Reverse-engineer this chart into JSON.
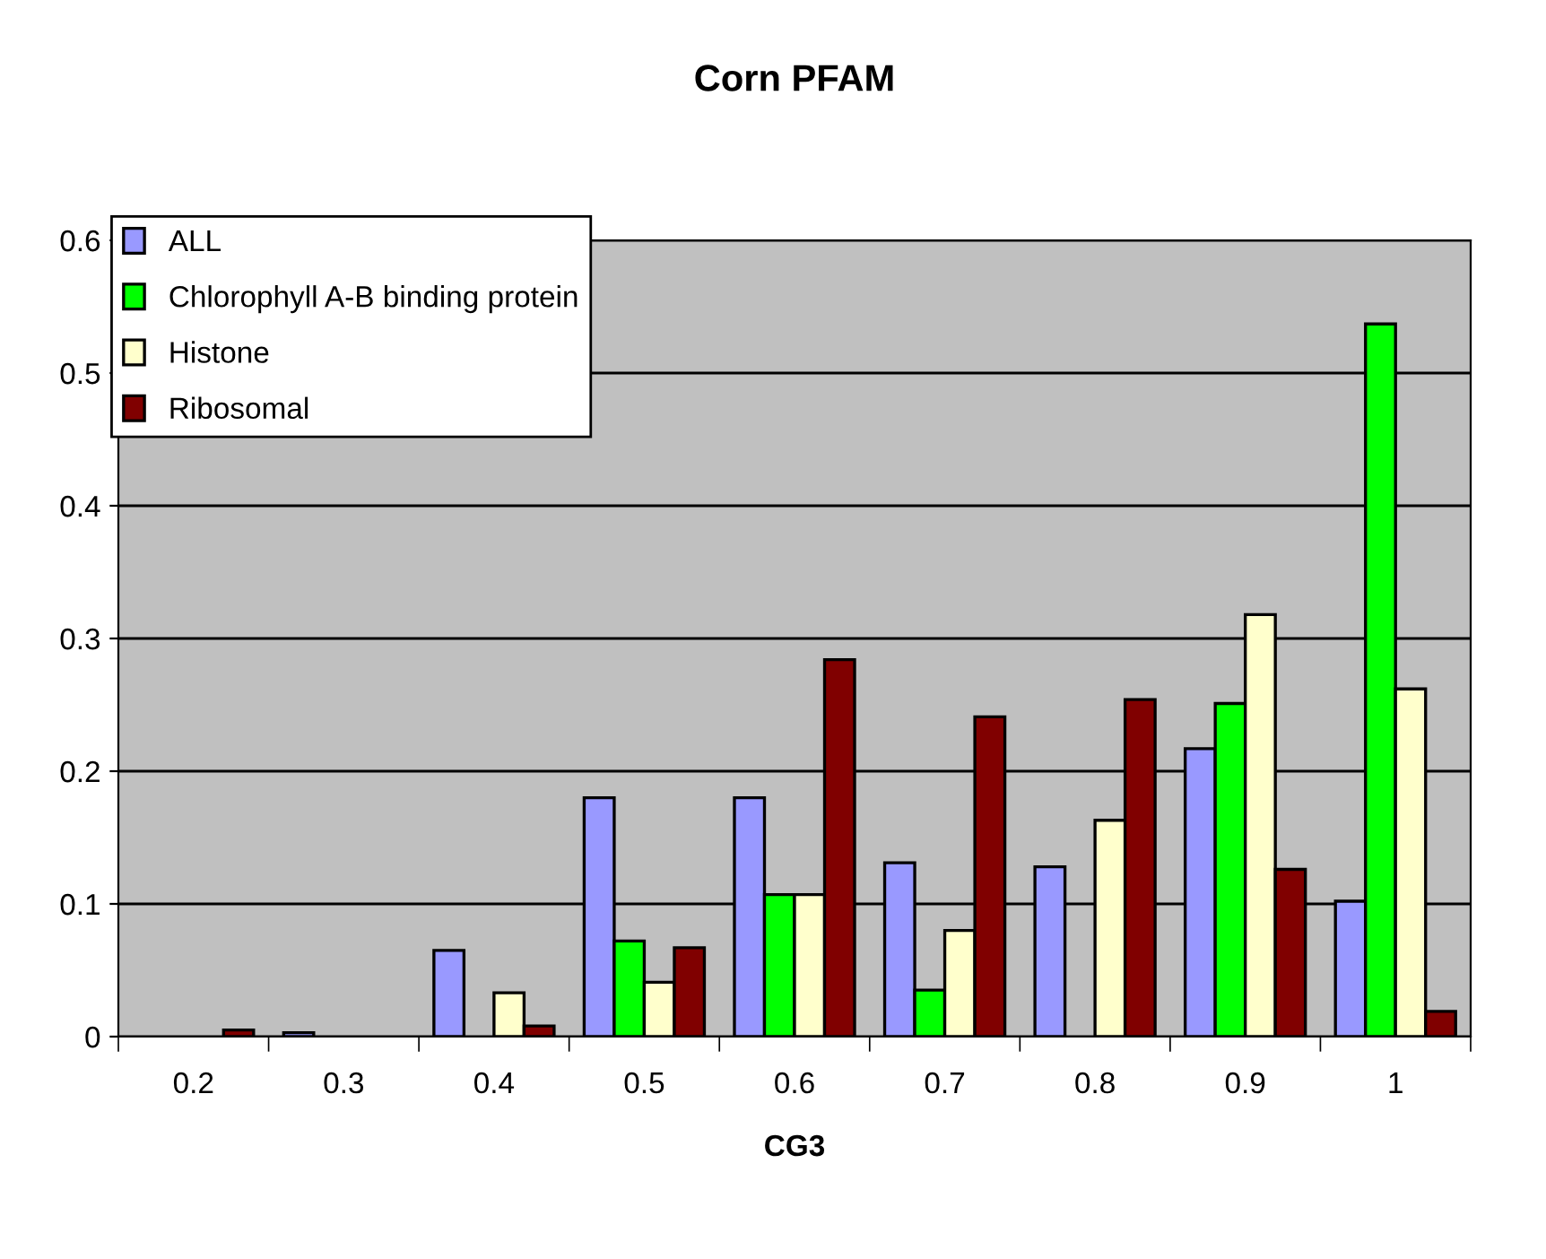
{
  "chart_data": {
    "type": "bar",
    "title": "Corn PFAM",
    "xlabel": "CG3",
    "categories": [
      "0.2",
      "0.3",
      "0.4",
      "0.5",
      "0.6",
      "0.7",
      "0.8",
      "0.9",
      "1"
    ],
    "series": [
      {
        "name": "ALL",
        "color": "#9999ff",
        "values": [
          null,
          0.003,
          0.065,
          0.18,
          0.18,
          0.131,
          0.128,
          0.217,
          0.102
        ]
      },
      {
        "name": "Chlorophyll A-B binding protein",
        "color": "#00ff00",
        "values": [
          null,
          null,
          null,
          0.072,
          0.107,
          0.035,
          null,
          0.251,
          0.537
        ]
      },
      {
        "name": "Histone",
        "color": "#ffffcc",
        "values": [
          null,
          null,
          0.033,
          0.041,
          0.107,
          0.08,
          0.163,
          0.318,
          0.262
        ]
      },
      {
        "name": "Ribosomal",
        "color": "#800000",
        "values": [
          0.005,
          null,
          0.008,
          0.067,
          0.284,
          0.241,
          0.254,
          0.126,
          0.019
        ]
      }
    ],
    "ylim": [
      0,
      0.6
    ],
    "yticks": [
      0,
      0.1,
      0.2,
      0.3,
      0.4,
      0.5,
      0.6
    ],
    "grid": "y",
    "legend": "top left"
  }
}
